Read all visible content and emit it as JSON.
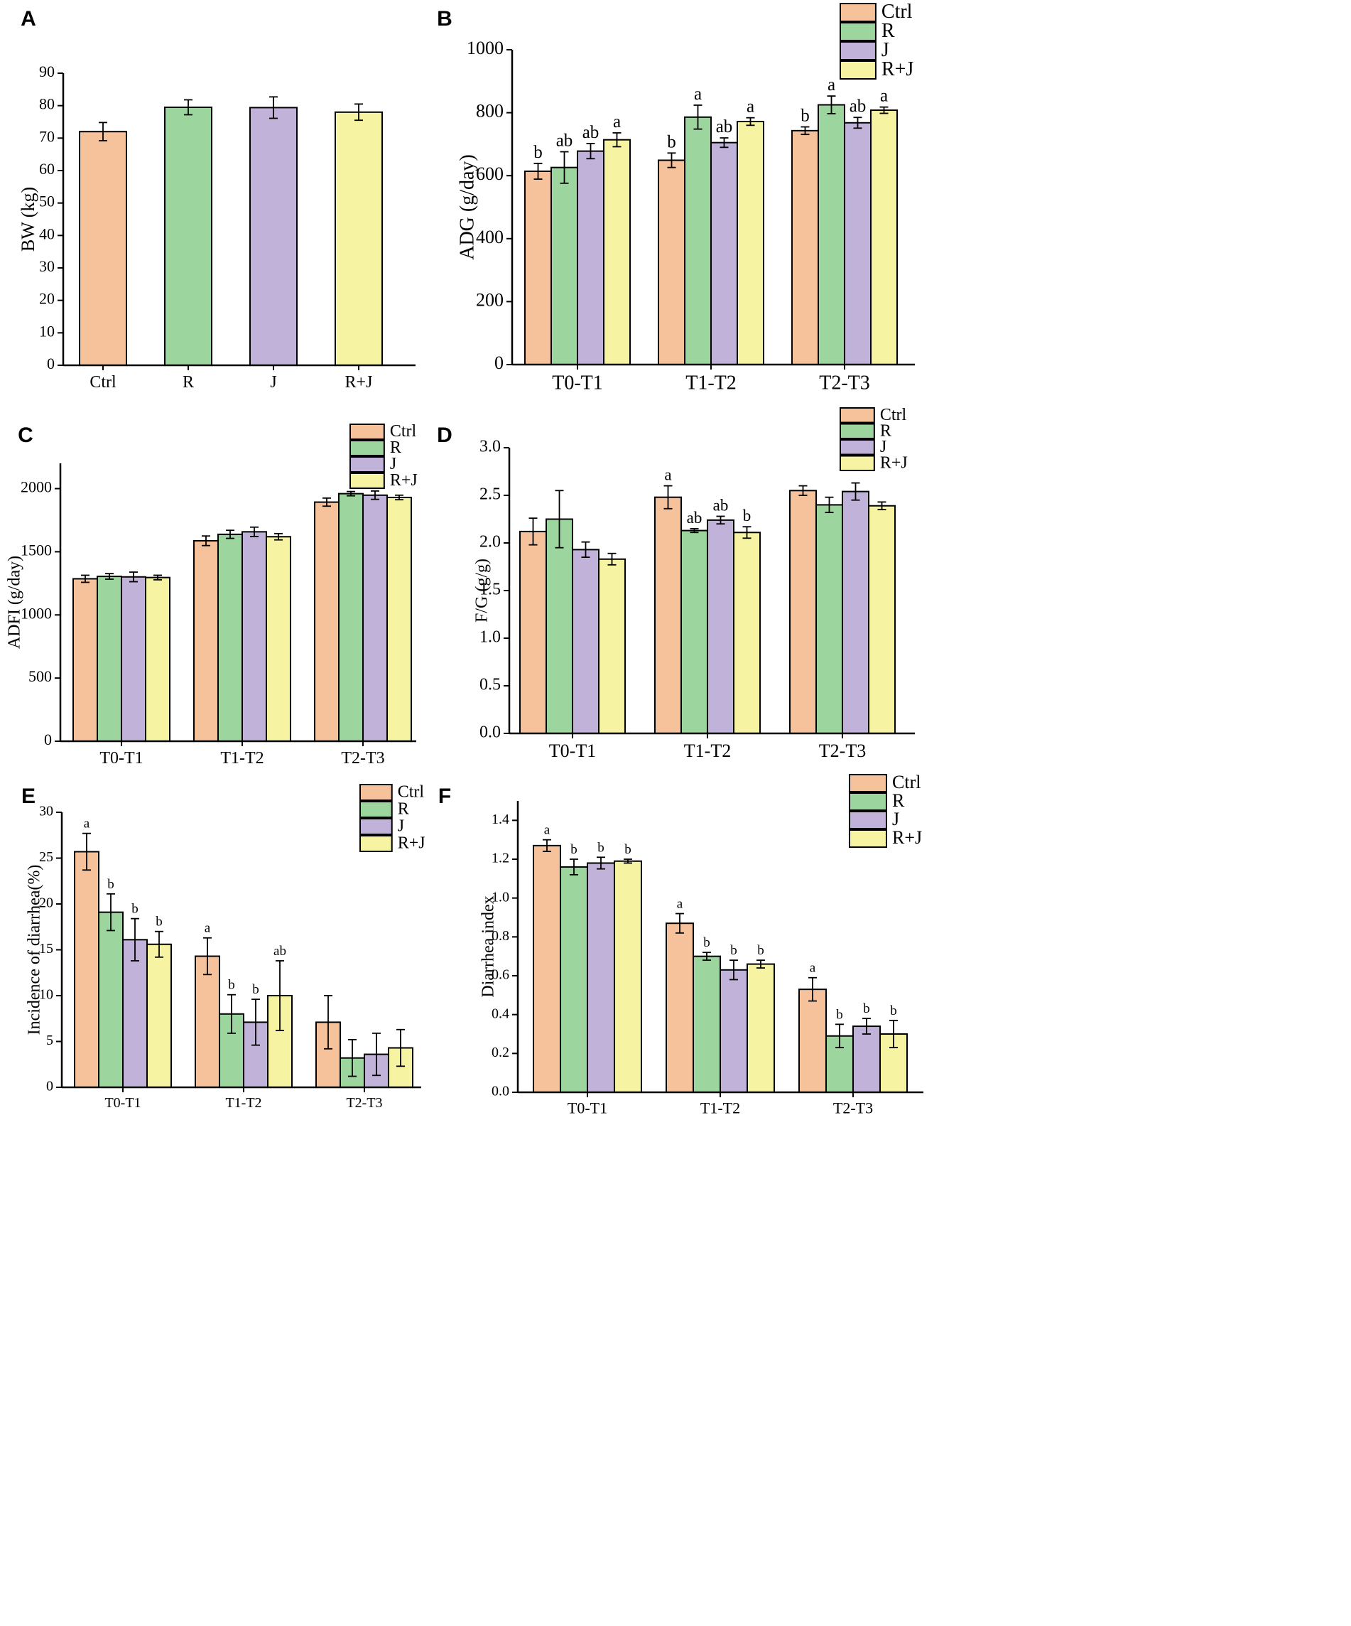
{
  "colors": {
    "Ctrl": "#f5c29b",
    "R": "#9dd59e",
    "J": "#c0b2d8",
    "R+J": "#f6f4a2"
  },
  "chart_data": [
    {
      "id": "A",
      "letter": "A",
      "type": "bar",
      "ylabel": "BW (kg)",
      "categories": [
        "Ctrl",
        "R",
        "J",
        "R+J"
      ],
      "series": [
        {
          "name": "BW",
          "values": [
            72.0,
            79.5,
            79.4,
            78.0
          ],
          "errors": [
            2.8,
            2.3,
            3.3,
            2.5
          ]
        }
      ],
      "ylim": [
        0,
        90
      ],
      "yticks": [
        "0",
        "10",
        "20",
        "30",
        "40",
        "50",
        "60",
        "70",
        "80",
        "90"
      ],
      "legend": null
    },
    {
      "id": "B",
      "letter": "B",
      "type": "bar",
      "ylabel": "ADG (g/day)",
      "categories": [
        "T0-T1",
        "T1-T2",
        "T2-T3"
      ],
      "series": [
        {
          "name": "Ctrl",
          "values": [
            614,
            649,
            743
          ],
          "errors": [
            25,
            23,
            12
          ],
          "labels": [
            "b",
            "b",
            "b"
          ]
        },
        {
          "name": "R",
          "values": [
            626,
            786,
            825
          ],
          "errors": [
            50,
            38,
            28
          ],
          "labels": [
            "ab",
            "a",
            "a"
          ]
        },
        {
          "name": "J",
          "values": [
            678,
            705,
            768
          ],
          "errors": [
            24,
            15,
            17
          ],
          "labels": [
            "ab",
            "ab",
            "ab"
          ]
        },
        {
          "name": "R+J",
          "values": [
            714,
            772,
            808
          ],
          "errors": [
            22,
            12,
            10
          ],
          "labels": [
            "a",
            "a",
            "a"
          ]
        }
      ],
      "ylim": [
        0,
        1000
      ],
      "yticks": [
        "0",
        "200",
        "400",
        "600",
        "800",
        "1000"
      ],
      "legend": [
        "Ctrl",
        "R",
        "J",
        "R+J"
      ]
    },
    {
      "id": "C",
      "letter": "C",
      "type": "bar",
      "ylabel": "ADFI (g/day)",
      "categories": [
        "T0-T1",
        "T1-T2",
        "T2-T3"
      ],
      "series": [
        {
          "name": "Ctrl",
          "values": [
            1286,
            1587,
            1893
          ],
          "errors": [
            28,
            38,
            32
          ]
        },
        {
          "name": "R",
          "values": [
            1305,
            1638,
            1960
          ],
          "errors": [
            22,
            32,
            17
          ]
        },
        {
          "name": "J",
          "values": [
            1301,
            1658,
            1948
          ],
          "errors": [
            38,
            37,
            33
          ]
        },
        {
          "name": "R+J",
          "values": [
            1296,
            1619,
            1930
          ],
          "errors": [
            18,
            25,
            18
          ]
        }
      ],
      "ylim": [
        0,
        2200
      ],
      "yticks": [
        "0",
        "500",
        "1000",
        "1500",
        "2000"
      ],
      "yticks_values": [
        0,
        500,
        1000,
        1500,
        2000
      ],
      "legend": [
        "Ctrl",
        "R",
        "J",
        "R+J"
      ]
    },
    {
      "id": "D",
      "letter": "D",
      "type": "bar",
      "ylabel": "F/G (g/g)",
      "categories": [
        "T0-T1",
        "T1-T2",
        "T2-T3"
      ],
      "series": [
        {
          "name": "Ctrl",
          "values": [
            2.12,
            2.48,
            2.55
          ],
          "errors": [
            0.14,
            0.12,
            0.05
          ],
          "labels": [
            "",
            "a",
            ""
          ]
        },
        {
          "name": "R",
          "values": [
            2.25,
            2.13,
            2.4
          ],
          "errors": [
            0.3,
            0.02,
            0.08
          ],
          "labels": [
            "",
            "ab",
            ""
          ]
        },
        {
          "name": "J",
          "values": [
            1.93,
            2.24,
            2.54
          ],
          "errors": [
            0.08,
            0.04,
            0.09
          ],
          "labels": [
            "",
            "ab",
            ""
          ]
        },
        {
          "name": "R+J",
          "values": [
            1.83,
            2.11,
            2.39
          ],
          "errors": [
            0.06,
            0.06,
            0.04
          ],
          "labels": [
            "",
            "b",
            ""
          ]
        }
      ],
      "ylim": [
        0,
        3.0
      ],
      "yticks": [
        "0.0",
        "0.5",
        "1.0",
        "1.5",
        "2.0",
        "2.5",
        "3.0"
      ],
      "legend": [
        "Ctrl",
        "R",
        "J",
        "R+J"
      ]
    },
    {
      "id": "E",
      "letter": "E",
      "type": "bar",
      "ylabel": "Incidence of diarrhea(%)",
      "categories": [
        "T0-T1",
        "T1-T2",
        "T2-T3"
      ],
      "series": [
        {
          "name": "Ctrl",
          "values": [
            25.7,
            14.3,
            7.1
          ],
          "errors": [
            2.0,
            2.0,
            2.9
          ],
          "labels": [
            "a",
            "a",
            ""
          ]
        },
        {
          "name": "R",
          "values": [
            19.1,
            8.0,
            3.2
          ],
          "errors": [
            2.0,
            2.1,
            2.0
          ],
          "labels": [
            "b",
            "b",
            ""
          ]
        },
        {
          "name": "J",
          "values": [
            16.1,
            7.1,
            3.6
          ],
          "errors": [
            2.3,
            2.5,
            2.3
          ],
          "labels": [
            "b",
            "b",
            ""
          ]
        },
        {
          "name": "R+J",
          "values": [
            15.6,
            10.0,
            4.3
          ],
          "errors": [
            1.4,
            3.8,
            2.0
          ],
          "labels": [
            "b",
            "ab",
            ""
          ]
        }
      ],
      "ylim": [
        0,
        30
      ],
      "yticks": [
        "0",
        "5",
        "10",
        "15",
        "20",
        "25",
        "30"
      ],
      "legend": [
        "Ctrl",
        "R",
        "J",
        "R+J"
      ]
    },
    {
      "id": "F",
      "letter": "F",
      "type": "bar",
      "ylabel": "Diarrhea index",
      "categories": [
        "T0-T1",
        "T1-T2",
        "T2-T3"
      ],
      "series": [
        {
          "name": "Ctrl",
          "values": [
            1.27,
            0.87,
            0.53
          ],
          "errors": [
            0.03,
            0.05,
            0.06
          ],
          "labels": [
            "a",
            "a",
            "a"
          ]
        },
        {
          "name": "R",
          "values": [
            1.16,
            0.7,
            0.29
          ],
          "errors": [
            0.04,
            0.02,
            0.06
          ],
          "labels": [
            "b",
            "b",
            "b"
          ]
        },
        {
          "name": "J",
          "values": [
            1.18,
            0.63,
            0.34
          ],
          "errors": [
            0.03,
            0.05,
            0.04
          ],
          "labels": [
            "b",
            "b",
            "b"
          ]
        },
        {
          "name": "R+J",
          "values": [
            1.19,
            0.66,
            0.3
          ],
          "errors": [
            0.01,
            0.02,
            0.07
          ],
          "labels": [
            "b",
            "b",
            "b"
          ]
        }
      ],
      "ylim": [
        0,
        1.5
      ],
      "yticks": [
        "0.0",
        "0.2",
        "0.4",
        "0.6",
        "0.8",
        "1.0",
        "1.2",
        "1.4"
      ],
      "legend": [
        "Ctrl",
        "R",
        "J",
        "R+J"
      ]
    }
  ]
}
